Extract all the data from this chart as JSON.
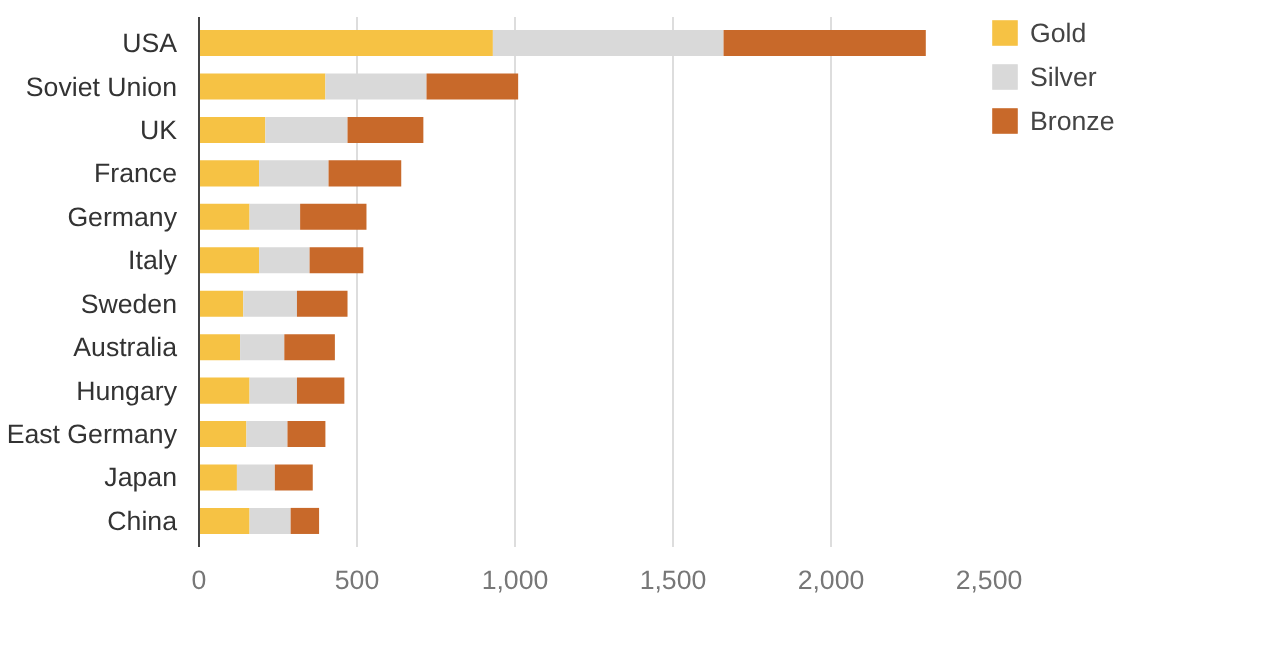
{
  "chart_data": {
    "type": "bar",
    "orientation": "horizontal",
    "stacked": true,
    "categories": [
      "USA",
      "Soviet Union",
      "UK",
      "France",
      "Germany",
      "Italy",
      "Sweden",
      "Australia",
      "Hungary",
      "East Germany",
      "Japan",
      "China"
    ],
    "series": [
      {
        "name": "Gold",
        "color": "#f6c244",
        "values": [
          930,
          400,
          210,
          190,
          160,
          190,
          140,
          130,
          160,
          150,
          120,
          160
        ]
      },
      {
        "name": "Silver",
        "color": "#d9d9d9",
        "values": [
          730,
          320,
          260,
          220,
          160,
          160,
          170,
          140,
          150,
          130,
          120,
          130
        ]
      },
      {
        "name": "Bronze",
        "color": "#c8692a",
        "values": [
          640,
          290,
          240,
          230,
          210,
          170,
          160,
          160,
          150,
          120,
          120,
          90
        ]
      }
    ],
    "xlim": [
      0,
      2500
    ],
    "xticks": [
      0,
      500,
      {
        "value": 1000,
        "label": "1,000"
      },
      {
        "value": 1500,
        "label": "1,500"
      },
      {
        "value": 2000,
        "label": "2,000"
      },
      {
        "value": 2500,
        "label": "2,500"
      }
    ],
    "grid": "x",
    "legend": "top right"
  }
}
